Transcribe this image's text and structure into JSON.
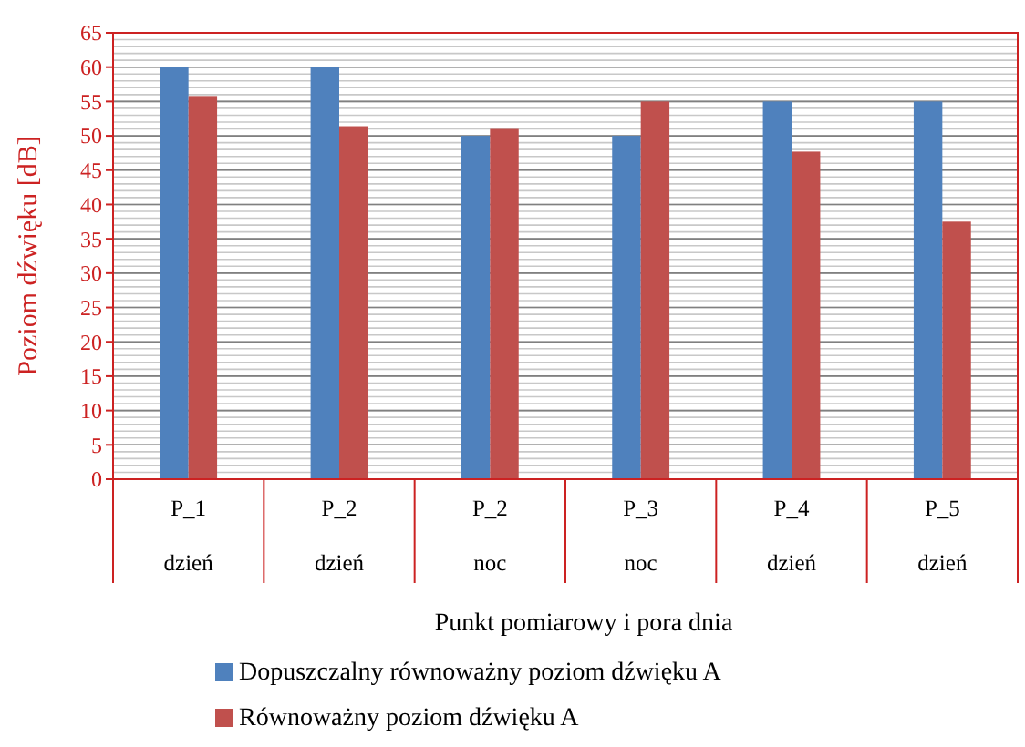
{
  "chart_data": {
    "type": "bar",
    "categories": [
      "P_1\ndzień",
      "P_2\ndzień",
      "P_2\nnoc",
      "P_3\nnoc",
      "P_4\ndzień",
      "P_5\ndzień"
    ],
    "series": [
      {
        "name": "Dopuszczalny równoważny poziom dźwięku A",
        "color": "#4f81bd",
        "values": [
          60,
          60,
          50,
          50,
          55,
          55
        ]
      },
      {
        "name": "Równoważny poziom dźwięku A",
        "color": "#c0504d",
        "values": [
          55.8,
          51.4,
          51,
          55,
          47.7,
          37.5
        ]
      }
    ],
    "ylim": [
      0,
      65
    ],
    "yticks": [
      0,
      5,
      10,
      15,
      20,
      25,
      30,
      35,
      40,
      45,
      50,
      55,
      60,
      65
    ],
    "ylabel": "Poziom dźwięku [dB]",
    "xlabel": "Punkt pomiarowy i pora dnia",
    "grid": "y",
    "legend": "bottom"
  }
}
